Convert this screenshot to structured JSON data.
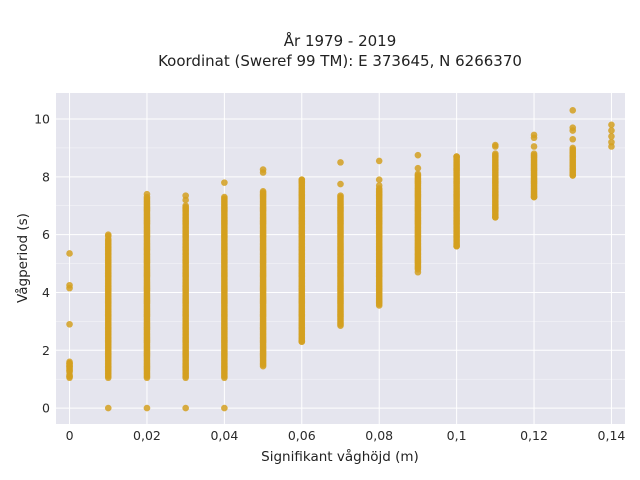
{
  "chart_data": {
    "type": "scatter",
    "title_lines": [
      "År 1979 - 2019",
      "Koordinat (Sweref 99 TM): E 373645, N 6266370"
    ],
    "xlabel": "Signifikant våghöjd (m)",
    "ylabel": "Vågperiod (s)",
    "xlim": [
      -0.0035,
      0.1435
    ],
    "ylim": [
      -0.55,
      10.9
    ],
    "xticks": [
      0,
      0.02,
      0.04,
      0.06,
      0.08,
      0.1,
      0.12,
      0.14
    ],
    "xtick_labels": [
      "0",
      "0,02",
      "0,04",
      "0,06",
      "0,08",
      "0,1",
      "0,12",
      "0,14"
    ],
    "yticks": [
      0,
      2,
      4,
      6,
      8,
      10
    ],
    "ytick_labels": [
      "0",
      "2",
      "4",
      "6",
      "8",
      "10"
    ],
    "grid": true,
    "marker_color": "#D4A020",
    "background_color": "#E5E5EE",
    "columns": [
      {
        "x": 0,
        "ranges": [
          [
            1.05,
            1.15
          ],
          [
            1.25,
            1.6
          ]
        ],
        "points": [
          1.1,
          1.3,
          1.45,
          1.55,
          2.9,
          4.15,
          4.25,
          5.35
        ]
      },
      {
        "x": 0.01,
        "ranges": [
          [
            1.05,
            5.8
          ]
        ],
        "points": [
          0,
          5.85,
          5.95,
          6.0
        ]
      },
      {
        "x": 0.02,
        "ranges": [
          [
            1.05,
            7.3
          ]
        ],
        "points": [
          0,
          7.4
        ]
      },
      {
        "x": 0.03,
        "ranges": [
          [
            1.05,
            7.0
          ]
        ],
        "points": [
          0,
          7.2,
          7.35
        ]
      },
      {
        "x": 0.04,
        "ranges": [
          [
            1.05,
            7.3
          ]
        ],
        "points": [
          0,
          7.8
        ]
      },
      {
        "x": 0.05,
        "ranges": [
          [
            1.5,
            7.5
          ]
        ],
        "points": [
          1.45,
          8.15,
          8.25
        ]
      },
      {
        "x": 0.06,
        "ranges": [
          [
            2.3,
            7.9
          ]
        ],
        "points": [
          2.3,
          7.9
        ]
      },
      {
        "x": 0.07,
        "ranges": [
          [
            2.9,
            7.35
          ]
        ],
        "points": [
          2.85,
          7.75,
          8.5
        ]
      },
      {
        "x": 0.08,
        "ranges": [
          [
            3.6,
            7.6
          ]
        ],
        "points": [
          3.55,
          7.7,
          7.9,
          8.55
        ]
      },
      {
        "x": 0.09,
        "ranges": [
          [
            4.8,
            8.1
          ]
        ],
        "points": [
          4.7,
          8.3,
          8.75
        ]
      },
      {
        "x": 0.1,
        "ranges": [
          [
            5.6,
            8.7
          ]
        ],
        "points": [
          5.6,
          8.7
        ]
      },
      {
        "x": 0.11,
        "ranges": [
          [
            6.6,
            8.8
          ]
        ],
        "points": [
          6.6,
          9.05,
          9.1
        ]
      },
      {
        "x": 0.12,
        "ranges": [
          [
            7.3,
            8.8
          ]
        ],
        "points": [
          7.3,
          9.05,
          9.35,
          9.45
        ]
      },
      {
        "x": 0.13,
        "ranges": [
          [
            8.05,
            9.0
          ]
        ],
        "points": [
          8.05,
          9.3,
          9.6,
          9.7,
          10.3
        ]
      },
      {
        "x": 0.14,
        "ranges": [],
        "points": [
          9.05,
          9.2,
          9.4,
          9.6,
          9.8
        ]
      }
    ]
  }
}
